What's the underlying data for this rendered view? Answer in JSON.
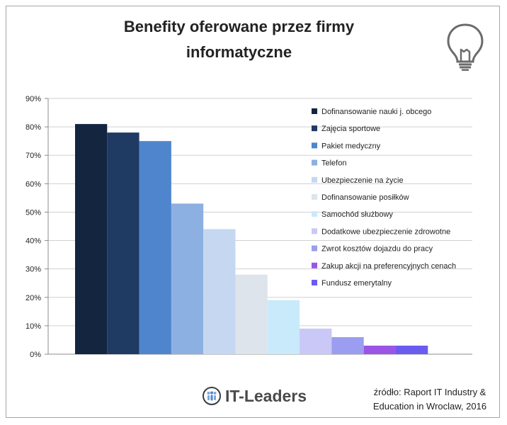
{
  "title_line1": "Benefity oferowane przez firmy",
  "title_line2": "informatyczne",
  "icons": {
    "bulb": "lightbulb-icon",
    "logo": "it-leaders-logo-icon"
  },
  "footer": {
    "logo_text": "IT-Leaders",
    "source_line1": "źródło: Raport IT Industry &",
    "source_line2": "Education in Wroclaw, 2016"
  },
  "chart_data": {
    "type": "bar",
    "ylim": [
      0,
      90
    ],
    "yticks": [
      0,
      10,
      20,
      30,
      40,
      50,
      60,
      70,
      80,
      90
    ],
    "ytick_labels": [
      "0%",
      "10%",
      "20%",
      "30%",
      "40%",
      "50%",
      "60%",
      "70%",
      "80%",
      "90%"
    ],
    "grid": true,
    "legend_position": "right",
    "series": [
      {
        "name": "Dofinansowanie nauki j. obcego",
        "value": 81,
        "color": "#13253f"
      },
      {
        "name": "Zajęcia sportowe",
        "value": 78,
        "color": "#1f3a63"
      },
      {
        "name": "Pakiet medyczny",
        "value": 75,
        "color": "#4f85cc"
      },
      {
        "name": "Telefon",
        "value": 53,
        "color": "#8db0e2"
      },
      {
        "name": "Ubezpieczenie na życie",
        "value": 44,
        "color": "#c6d8f1"
      },
      {
        "name": "Dofinansowanie posiłków",
        "value": 28,
        "color": "#dde4ec"
      },
      {
        "name": "Samochód służbowy",
        "value": 19,
        "color": "#c9eafb"
      },
      {
        "name": "Dodatkowe ubezpieczenie zdrowotne",
        "value": 9,
        "color": "#c9c8f6"
      },
      {
        "name": "Zwrot kosztów dojazdu do pracy",
        "value": 6,
        "color": "#9a9df0"
      },
      {
        "name": "Zakup akcji na preferencyjnych cenach",
        "value": 3,
        "color": "#9b55e6"
      },
      {
        "name": "Fundusz emerytalny",
        "value": 3,
        "color": "#6b5cf0"
      }
    ]
  }
}
